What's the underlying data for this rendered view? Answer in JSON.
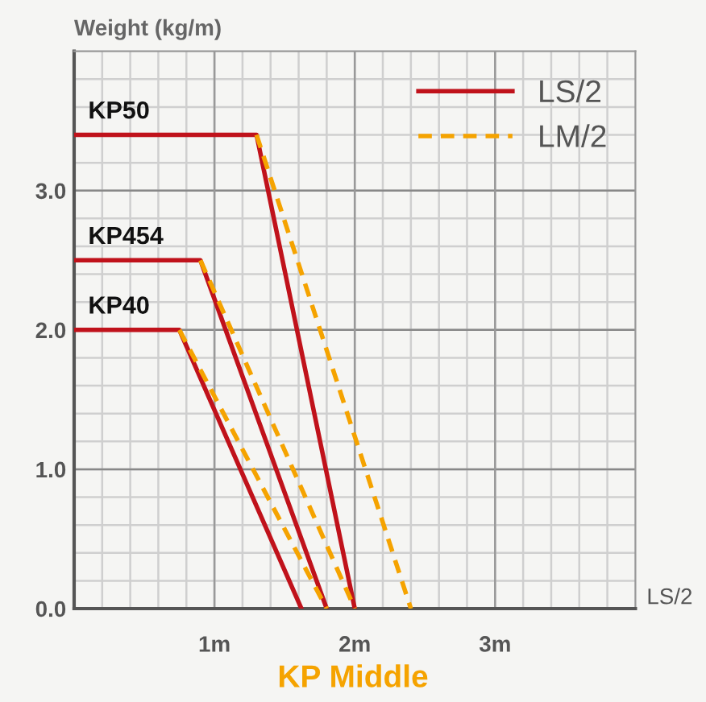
{
  "chart_data": {
    "type": "line",
    "title": "KP Middle",
    "ylabel": "Weight (kg/m)",
    "xlabel": "LS/2",
    "series": [
      {
        "name": "LS/2",
        "color": "#c0121b",
        "line_style": "solid",
        "x": [
          0,
          1.3,
          2.0
        ],
        "values": [
          3.4,
          3.4,
          0
        ]
      },
      {
        "name": "LM/2",
        "color": "#f5a300",
        "line_style": "dashed",
        "x": [
          1.3,
          2.4
        ],
        "values": [
          3.4,
          0
        ]
      },
      {
        "color": "#c0121b",
        "line_style": "solid",
        "x": [
          0,
          0.9,
          1.8
        ],
        "values": [
          2.5,
          2.5,
          0
        ]
      },
      {
        "color": "#f5a300",
        "line_style": "dashed",
        "x": [
          0.9,
          2.0
        ],
        "values": [
          2.5,
          0
        ]
      },
      {
        "color": "#c0121b",
        "line_style": "solid",
        "x": [
          0,
          0.75,
          1.62
        ],
        "values": [
          2.0,
          2.0,
          0
        ]
      },
      {
        "color": "#f5a300",
        "line_style": "dashed",
        "x": [
          0.75,
          1.8
        ],
        "values": [
          2.0,
          0
        ]
      }
    ],
    "annotations": [
      {
        "text": "KP50",
        "y": 3.4
      },
      {
        "text": "KP454",
        "y": 2.5
      },
      {
        "text": "KP40",
        "y": 2.0
      }
    ],
    "xlim": [
      0,
      4
    ],
    "ylim": [
      0,
      4
    ],
    "xticks": [
      {
        "value": 0.2,
        "label": null
      },
      {
        "value": 0.4,
        "label": null
      },
      {
        "value": 0.6,
        "label": null
      },
      {
        "value": 0.8,
        "label": null
      },
      {
        "value": 1,
        "label": "1m"
      },
      {
        "value": 1.2,
        "label": null
      },
      {
        "value": 1.4,
        "label": null
      },
      {
        "value": 1.6,
        "label": null
      },
      {
        "value": 1.8,
        "label": null
      },
      {
        "value": 2,
        "label": "2m"
      },
      {
        "value": 2.2,
        "label": null
      },
      {
        "value": 2.4,
        "label": null
      },
      {
        "value": 2.6,
        "label": null
      },
      {
        "value": 2.8,
        "label": null
      },
      {
        "value": 3,
        "label": "3m"
      },
      {
        "value": 3.2,
        "label": null
      },
      {
        "value": 3.4,
        "label": null
      },
      {
        "value": 3.6,
        "label": null
      },
      {
        "value": 3.8,
        "label": null
      }
    ],
    "yticks": [
      {
        "value": 0,
        "label": "0.0"
      },
      {
        "value": 0.2,
        "label": null
      },
      {
        "value": 0.4,
        "label": null
      },
      {
        "value": 0.6,
        "label": null
      },
      {
        "value": 0.8,
        "label": null
      },
      {
        "value": 1,
        "label": "1.0"
      },
      {
        "value": 1.2,
        "label": null
      },
      {
        "value": 1.4,
        "label": null
      },
      {
        "value": 1.6,
        "label": null
      },
      {
        "value": 1.8,
        "label": null
      },
      {
        "value": 2,
        "label": "2.0"
      },
      {
        "value": 2.2,
        "label": null
      },
      {
        "value": 2.4,
        "label": null
      },
      {
        "value": 2.6,
        "label": null
      },
      {
        "value": 2.8,
        "label": null
      },
      {
        "value": 3,
        "label": "3.0"
      },
      {
        "value": 3.2,
        "label": null
      },
      {
        "value": 3.4,
        "label": null
      },
      {
        "value": 3.6,
        "label": null
      },
      {
        "value": 3.8,
        "label": null
      }
    ],
    "grid": true,
    "legend": "top right",
    "marker": "none"
  }
}
